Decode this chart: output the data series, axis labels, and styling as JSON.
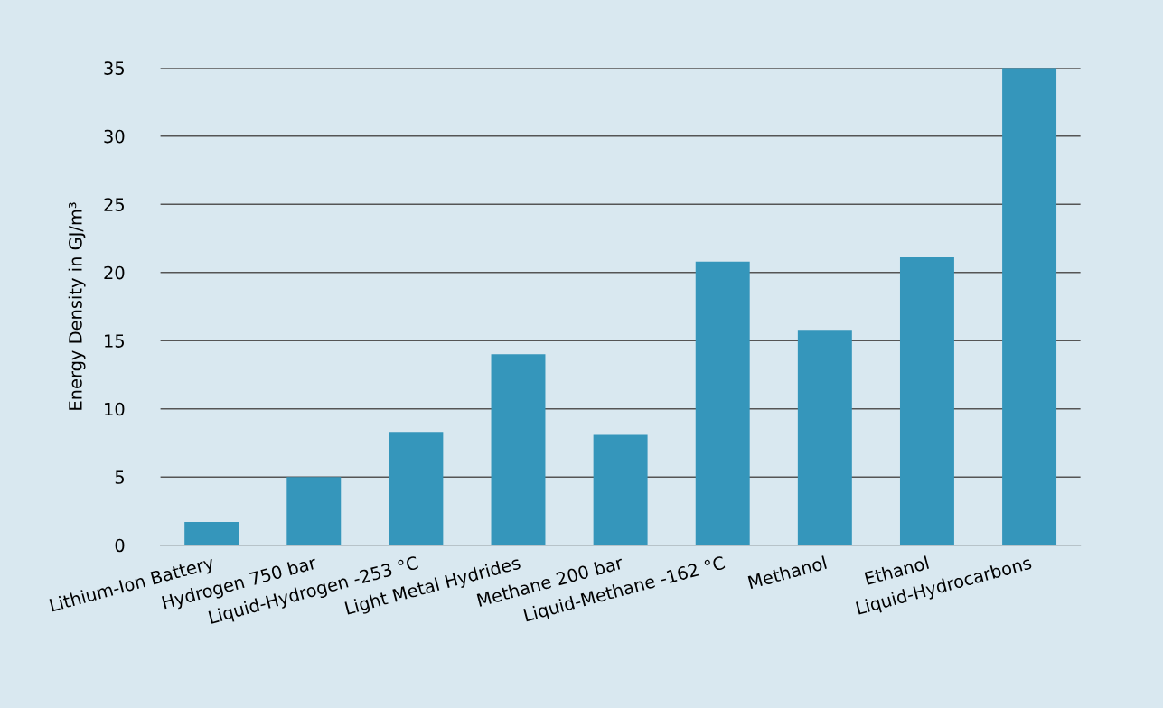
{
  "chart_data": {
    "type": "bar",
    "ylabel": "Energy Density in GJ/m³",
    "categories": [
      "Lithium-Ion Battery",
      "Hydrogen 750 bar",
      "Liquid-Hydrogen -253 °C",
      "Light Metal Hydrides",
      "Methane 200 bar",
      "Liquid-Methane -162 °C",
      "Methanol",
      "Ethanol",
      "Liquid-Hydrocarbons"
    ],
    "values": [
      1.7,
      5.0,
      8.3,
      14.0,
      8.1,
      20.8,
      15.8,
      21.1,
      35.0
    ],
    "color": "#3596bb",
    "ylim": [
      0,
      35
    ],
    "yticks": [
      0,
      5,
      10,
      15,
      20,
      25,
      30,
      35
    ],
    "grid": "y"
  }
}
